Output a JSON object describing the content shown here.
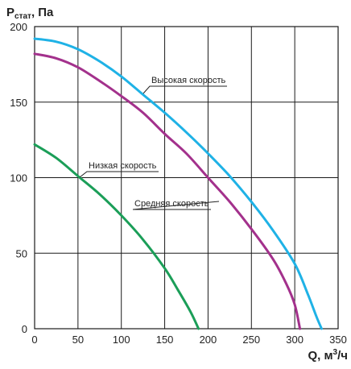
{
  "chart_data": {
    "type": "line",
    "title": "",
    "ylabel": {
      "main": "P",
      "sub": "стат",
      "rest": ", Па"
    },
    "xlabel": {
      "main": "Q, м",
      "sup": "3",
      "rest": "/ч"
    },
    "xlim": [
      0,
      350
    ],
    "ylim": [
      0,
      200
    ],
    "x_ticks": [
      0,
      50,
      100,
      150,
      200,
      250,
      300,
      350
    ],
    "y_ticks": [
      0,
      50,
      100,
      150,
      200
    ],
    "grid": true,
    "series": [
      {
        "name": "Высокая скорость",
        "color": "#1fb2e6",
        "points": [
          [
            0,
            192
          ],
          [
            25,
            190
          ],
          [
            50,
            185
          ],
          [
            75,
            177
          ],
          [
            100,
            167
          ],
          [
            125,
            155
          ],
          [
            150,
            143
          ],
          [
            175,
            130
          ],
          [
            200,
            116
          ],
          [
            225,
            101
          ],
          [
            250,
            84
          ],
          [
            275,
            65
          ],
          [
            300,
            43
          ],
          [
            315,
            23
          ],
          [
            325,
            8
          ],
          [
            331,
            0
          ]
        ]
      },
      {
        "name": "Средняя скорость",
        "color": "#a3318c",
        "points": [
          [
            0,
            182
          ],
          [
            25,
            179
          ],
          [
            50,
            173
          ],
          [
            75,
            164
          ],
          [
            100,
            154
          ],
          [
            125,
            143
          ],
          [
            150,
            129
          ],
          [
            175,
            116
          ],
          [
            200,
            100
          ],
          [
            225,
            84
          ],
          [
            250,
            66
          ],
          [
            275,
            46
          ],
          [
            290,
            30
          ],
          [
            300,
            16
          ],
          [
            306,
            0
          ]
        ]
      },
      {
        "name": "Низкая скорость",
        "color": "#1b9e58",
        "points": [
          [
            0,
            122
          ],
          [
            25,
            113
          ],
          [
            50,
            101
          ],
          [
            75,
            89
          ],
          [
            100,
            75
          ],
          [
            125,
            59
          ],
          [
            150,
            40
          ],
          [
            165,
            26
          ],
          [
            180,
            11
          ],
          [
            189,
            0
          ]
        ]
      }
    ],
    "annotations": [
      {
        "series": 0,
        "text": "Высокая скорость"
      },
      {
        "series": 1,
        "text": "Средняя скорость"
      },
      {
        "series": 2,
        "text": "Низкая скорость"
      }
    ]
  }
}
